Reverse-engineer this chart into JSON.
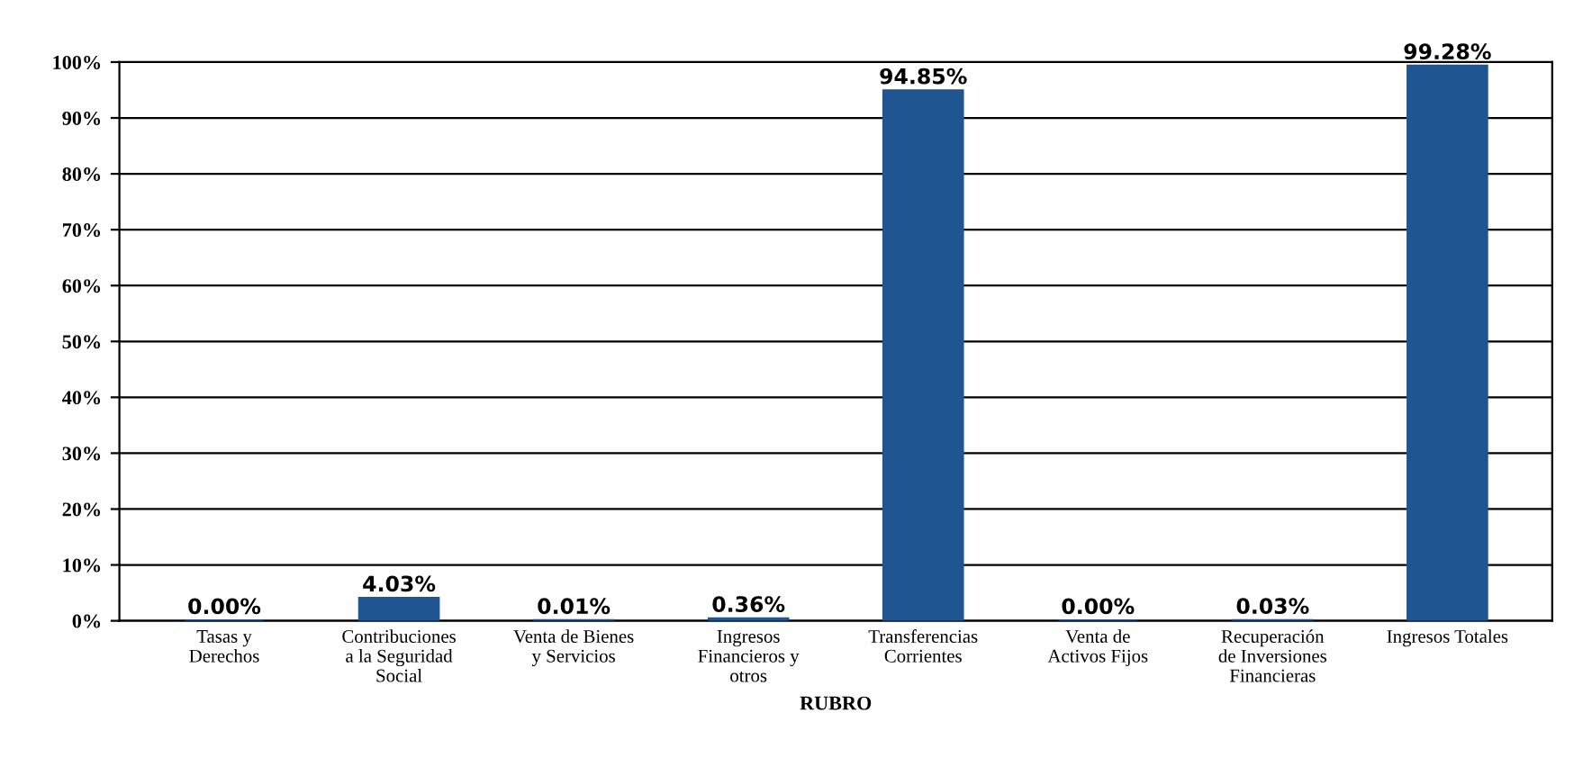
{
  "chart_data": {
    "type": "bar",
    "xlabel": "RUBRO",
    "categories": [
      "Tasas y\nDerechos",
      "Contribuciones\na la Seguridad\nSocial",
      "Venta de Bienes\ny Servicios",
      "Ingresos\nFinancieros y\notros",
      "Transferencias\nCorrientes",
      "Venta de\nActivos Fijos",
      "Recuperación\nde Inversiones\nFinancieras",
      "Ingresos Totales"
    ],
    "values": [
      0.0,
      4.03,
      0.01,
      0.36,
      94.85,
      0.0,
      0.03,
      99.28
    ],
    "value_labels": [
      "0.00%",
      "4.03%",
      "0.01%",
      "0.36%",
      "94.85%",
      "0.00%",
      "0.03%",
      "99.28%"
    ],
    "color": "#1f5591",
    "ylim": [
      0,
      100
    ],
    "yticks": [
      {
        "value": 0,
        "label": "0%"
      },
      {
        "value": 10,
        "label": "10%"
      },
      {
        "value": 20,
        "label": "20%"
      },
      {
        "value": 30,
        "label": "30%"
      },
      {
        "value": 40,
        "label": "40%"
      },
      {
        "value": 50,
        "label": "50%"
      },
      {
        "value": 60,
        "label": "60%"
      },
      {
        "value": 70,
        "label": "70%"
      },
      {
        "value": 80,
        "label": "80%"
      },
      {
        "value": 90,
        "label": "90%"
      },
      {
        "value": 100,
        "label": "100%"
      }
    ],
    "grid": "y",
    "legend": false
  }
}
